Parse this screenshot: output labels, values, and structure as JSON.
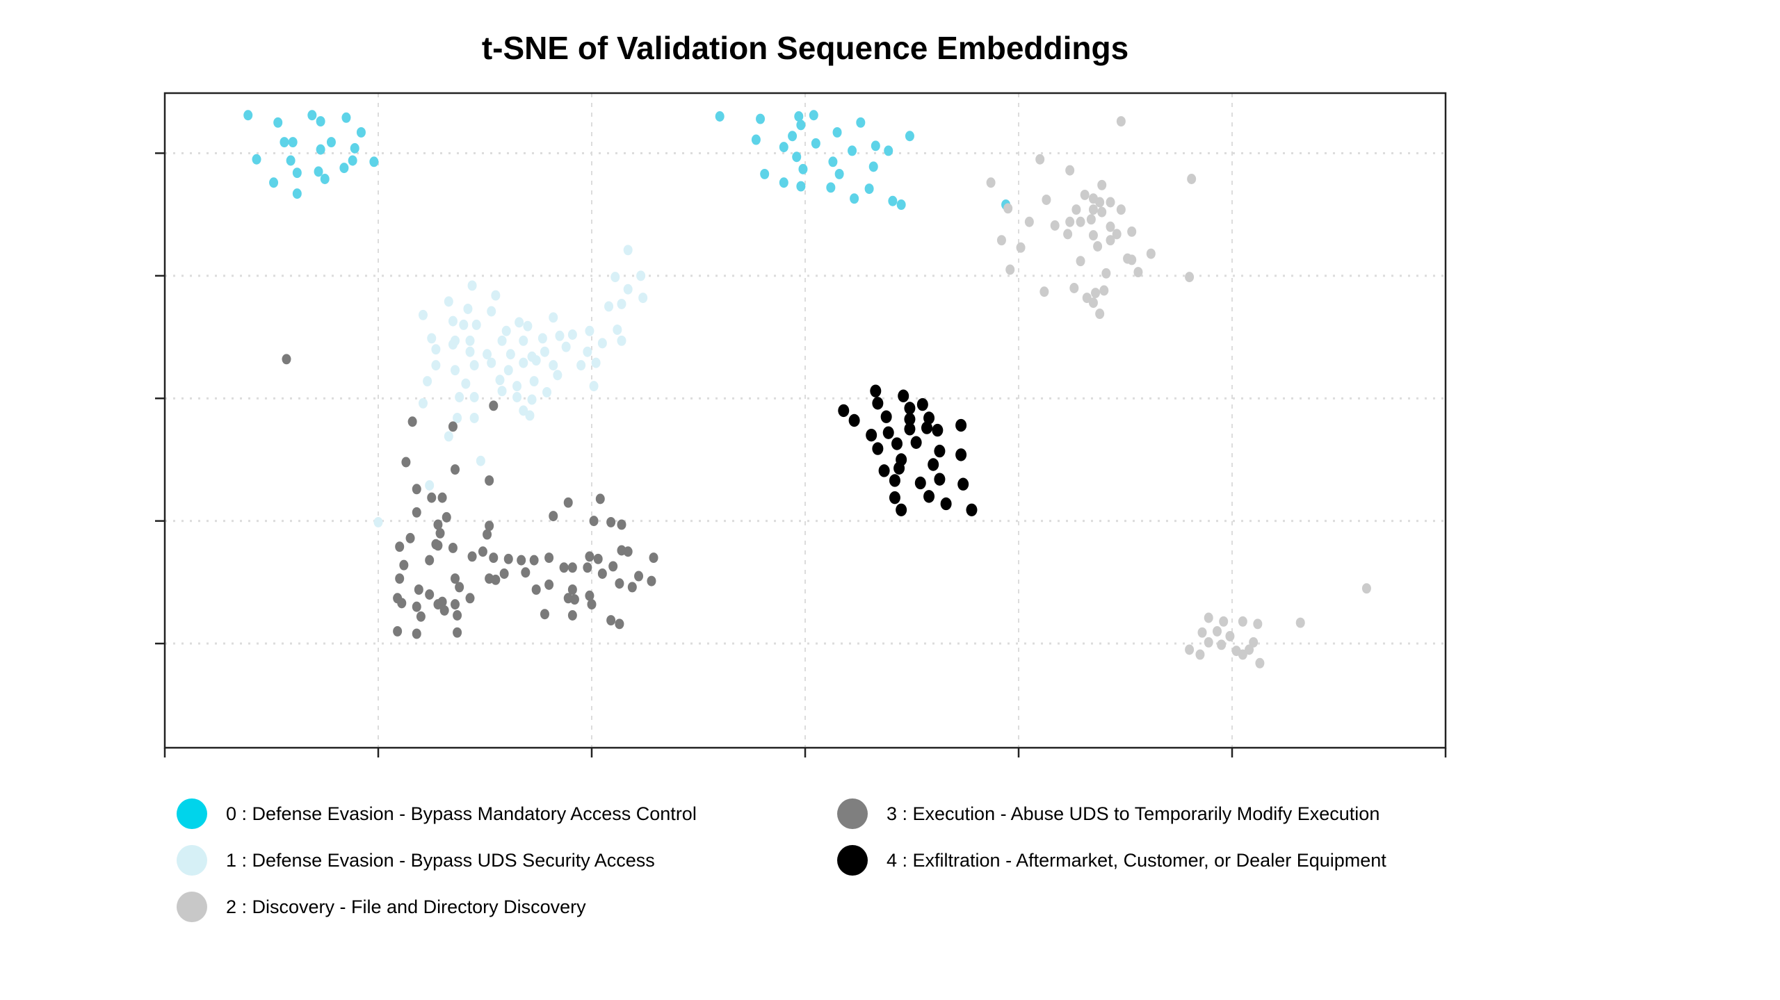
{
  "chart_data": {
    "type": "scatter",
    "title": "t-SNE of Validation Sequence Embeddings",
    "xlabel": "",
    "ylabel": "",
    "xlim": [
      0,
      6
    ],
    "ylim": [
      -0.85,
      4.49
    ],
    "xticks": [
      0,
      1,
      2,
      3,
      4,
      5,
      6
    ],
    "yticks": [
      0,
      1,
      2,
      3,
      4
    ],
    "tick_labels_shown": false,
    "grid": true,
    "legend_placement": "bottom",
    "series": [
      {
        "name": "0 : Defense Evasion - Bypass Mandatory Access Control",
        "color": "#00d4eb",
        "point_color": "#5dd3e8",
        "points": [
          [
            0.39,
            4.31
          ],
          [
            0.53,
            4.25
          ],
          [
            0.69,
            4.31
          ],
          [
            0.73,
            4.26
          ],
          [
            0.85,
            4.29
          ],
          [
            0.56,
            4.09
          ],
          [
            0.6,
            4.09
          ],
          [
            0.78,
            4.09
          ],
          [
            0.92,
            4.17
          ],
          [
            0.73,
            4.03
          ],
          [
            0.89,
            4.04
          ],
          [
            0.43,
            3.95
          ],
          [
            0.59,
            3.94
          ],
          [
            0.72,
            3.85
          ],
          [
            0.84,
            3.88
          ],
          [
            0.88,
            3.94
          ],
          [
            0.98,
            3.93
          ],
          [
            0.51,
            3.76
          ],
          [
            0.62,
            3.84
          ],
          [
            0.75,
            3.79
          ],
          [
            0.62,
            3.67
          ],
          [
            2.6,
            4.3
          ],
          [
            2.79,
            4.28
          ],
          [
            2.97,
            4.3
          ],
          [
            3.04,
            4.31
          ],
          [
            2.98,
            4.23
          ],
          [
            3.26,
            4.25
          ],
          [
            3.49,
            4.14
          ],
          [
            2.77,
            4.11
          ],
          [
            2.94,
            4.14
          ],
          [
            3.15,
            4.17
          ],
          [
            2.9,
            4.05
          ],
          [
            3.05,
            4.08
          ],
          [
            3.33,
            4.06
          ],
          [
            3.39,
            4.02
          ],
          [
            2.96,
            3.97
          ],
          [
            3.22,
            4.02
          ],
          [
            3.13,
            3.93
          ],
          [
            2.81,
            3.83
          ],
          [
            2.99,
            3.87
          ],
          [
            3.16,
            3.83
          ],
          [
            3.32,
            3.89
          ],
          [
            2.9,
            3.76
          ],
          [
            2.98,
            3.73
          ],
          [
            3.12,
            3.72
          ],
          [
            3.3,
            3.71
          ],
          [
            3.23,
            3.63
          ],
          [
            3.41,
            3.61
          ],
          [
            3.45,
            3.58
          ],
          [
            3.94,
            3.58
          ]
        ]
      },
      {
        "name": "1 : Defense Evasion - Bypass UDS Security Access",
        "color": "#d6f0f6",
        "point_color": "#d8f0f7",
        "points": [
          [
            2.17,
            3.21
          ],
          [
            2.11,
            2.99
          ],
          [
            2.23,
            3.0
          ],
          [
            2.17,
            2.89
          ],
          [
            2.24,
            2.82
          ],
          [
            2.14,
            2.77
          ],
          [
            2.08,
            2.75
          ],
          [
            1.44,
            2.92
          ],
          [
            1.55,
            2.84
          ],
          [
            1.33,
            2.79
          ],
          [
            1.42,
            2.73
          ],
          [
            1.53,
            2.71
          ],
          [
            1.21,
            2.68
          ],
          [
            1.35,
            2.63
          ],
          [
            1.4,
            2.6
          ],
          [
            1.46,
            2.6
          ],
          [
            1.82,
            2.66
          ],
          [
            1.66,
            2.62
          ],
          [
            1.7,
            2.59
          ],
          [
            1.6,
            2.55
          ],
          [
            1.25,
            2.49
          ],
          [
            1.36,
            2.47
          ],
          [
            1.43,
            2.47
          ],
          [
            1.58,
            2.47
          ],
          [
            1.68,
            2.47
          ],
          [
            1.77,
            2.49
          ],
          [
            1.85,
            2.51
          ],
          [
            1.91,
            2.52
          ],
          [
            1.99,
            2.55
          ],
          [
            2.12,
            2.56
          ],
          [
            1.27,
            2.4
          ],
          [
            1.35,
            2.44
          ],
          [
            1.43,
            2.38
          ],
          [
            1.51,
            2.36
          ],
          [
            1.62,
            2.36
          ],
          [
            1.72,
            2.34
          ],
          [
            1.78,
            2.38
          ],
          [
            1.88,
            2.42
          ],
          [
            1.98,
            2.38
          ],
          [
            2.05,
            2.45
          ],
          [
            2.14,
            2.47
          ],
          [
            1.27,
            2.27
          ],
          [
            1.36,
            2.23
          ],
          [
            1.45,
            2.27
          ],
          [
            1.53,
            2.29
          ],
          [
            1.61,
            2.23
          ],
          [
            1.68,
            2.29
          ],
          [
            1.74,
            2.31
          ],
          [
            1.82,
            2.27
          ],
          [
            1.95,
            2.27
          ],
          [
            2.02,
            2.29
          ],
          [
            1.41,
            2.12
          ],
          [
            1.57,
            2.15
          ],
          [
            1.65,
            2.1
          ],
          [
            1.73,
            2.14
          ],
          [
            1.84,
            2.19
          ],
          [
            2.01,
            2.1
          ],
          [
            1.23,
            2.14
          ],
          [
            1.21,
            1.96
          ],
          [
            1.38,
            2.01
          ],
          [
            1.45,
            2.01
          ],
          [
            1.58,
            2.06
          ],
          [
            1.65,
            2.01
          ],
          [
            1.72,
            1.99
          ],
          [
            1.79,
            2.05
          ],
          [
            1.37,
            1.84
          ],
          [
            1.45,
            1.84
          ],
          [
            1.68,
            1.9
          ],
          [
            1.71,
            1.86
          ],
          [
            1.33,
            1.69
          ],
          [
            1.48,
            1.49
          ],
          [
            1.24,
            1.29
          ],
          [
            1.0,
            0.99
          ]
        ]
      },
      {
        "name": "2 : Discovery - File and Directory Discovery",
        "color": "#c8c8c8",
        "point_color": "#cbcbcb",
        "points": [
          [
            4.48,
            4.26
          ],
          [
            4.1,
            3.95
          ],
          [
            3.87,
            3.76
          ],
          [
            4.81,
            3.79
          ],
          [
            4.24,
            3.86
          ],
          [
            4.39,
            3.74
          ],
          [
            4.31,
            3.66
          ],
          [
            4.35,
            3.63
          ],
          [
            4.38,
            3.6
          ],
          [
            4.43,
            3.6
          ],
          [
            4.27,
            3.54
          ],
          [
            4.35,
            3.54
          ],
          [
            4.48,
            3.54
          ],
          [
            3.95,
            3.55
          ],
          [
            4.13,
            3.62
          ],
          [
            4.29,
            3.44
          ],
          [
            4.39,
            3.52
          ],
          [
            4.17,
            3.41
          ],
          [
            4.24,
            3.44
          ],
          [
            4.34,
            3.46
          ],
          [
            4.43,
            3.4
          ],
          [
            4.46,
            3.34
          ],
          [
            4.53,
            3.36
          ],
          [
            3.92,
            3.29
          ],
          [
            4.05,
            3.44
          ],
          [
            4.23,
            3.34
          ],
          [
            4.35,
            3.33
          ],
          [
            4.01,
            3.23
          ],
          [
            4.37,
            3.24
          ],
          [
            4.43,
            3.29
          ],
          [
            4.62,
            3.18
          ],
          [
            3.96,
            3.05
          ],
          [
            4.51,
            3.14
          ],
          [
            4.53,
            3.13
          ],
          [
            4.29,
            3.12
          ],
          [
            4.8,
            2.99
          ],
          [
            4.41,
            3.02
          ],
          [
            4.56,
            3.03
          ],
          [
            4.12,
            2.87
          ],
          [
            4.26,
            2.9
          ],
          [
            4.32,
            2.82
          ],
          [
            4.36,
            2.86
          ],
          [
            4.4,
            2.88
          ],
          [
            4.35,
            2.78
          ],
          [
            4.38,
            2.69
          ],
          [
            5.63,
            0.45
          ],
          [
            5.32,
            0.17
          ],
          [
            4.89,
            0.21
          ],
          [
            4.96,
            0.18
          ],
          [
            5.05,
            0.18
          ],
          [
            5.12,
            0.16
          ],
          [
            4.86,
            0.09
          ],
          [
            4.93,
            0.1
          ],
          [
            4.99,
            0.06
          ],
          [
            4.8,
            -0.05
          ],
          [
            4.85,
            -0.09
          ],
          [
            4.89,
            0.01
          ],
          [
            4.95,
            -0.01
          ],
          [
            5.02,
            -0.06
          ],
          [
            5.05,
            -0.09
          ],
          [
            5.1,
            0.01
          ],
          [
            5.13,
            -0.16
          ],
          [
            5.08,
            -0.05
          ]
        ]
      },
      {
        "name": "3 : Execution - Abuse UDS to Temporarily Modify Execution",
        "color": "#7f7f7f",
        "point_color": "#7a7a7a",
        "points": [
          [
            0.57,
            2.32
          ],
          [
            1.16,
            1.81
          ],
          [
            1.35,
            1.77
          ],
          [
            1.54,
            1.94
          ],
          [
            1.13,
            1.48
          ],
          [
            1.36,
            1.42
          ],
          [
            1.18,
            1.26
          ],
          [
            1.25,
            1.19
          ],
          [
            1.3,
            1.19
          ],
          [
            1.52,
            1.33
          ],
          [
            1.18,
            1.07
          ],
          [
            1.32,
            1.03
          ],
          [
            1.52,
            0.96
          ],
          [
            1.15,
            0.86
          ],
          [
            1.28,
            0.97
          ],
          [
            1.29,
            0.9
          ],
          [
            1.28,
            0.8
          ],
          [
            1.27,
            0.81
          ],
          [
            1.51,
            0.89
          ],
          [
            1.82,
            1.04
          ],
          [
            1.89,
            1.15
          ],
          [
            2.04,
            1.18
          ],
          [
            2.01,
            1.0
          ],
          [
            2.09,
            0.99
          ],
          [
            2.14,
            0.97
          ],
          [
            2.14,
            0.76
          ],
          [
            2.17,
            0.75
          ],
          [
            2.29,
            0.7
          ],
          [
            1.1,
            0.79
          ],
          [
            1.1,
            0.53
          ],
          [
            1.12,
            0.64
          ],
          [
            1.24,
            0.68
          ],
          [
            1.35,
            0.78
          ],
          [
            1.44,
            0.71
          ],
          [
            1.49,
            0.75
          ],
          [
            1.54,
            0.7
          ],
          [
            1.61,
            0.69
          ],
          [
            1.67,
            0.68
          ],
          [
            1.73,
            0.68
          ],
          [
            1.8,
            0.7
          ],
          [
            1.87,
            0.62
          ],
          [
            1.91,
            0.62
          ],
          [
            1.99,
            0.71
          ],
          [
            2.03,
            0.69
          ],
          [
            2.05,
            0.57
          ],
          [
            2.1,
            0.63
          ],
          [
            2.13,
            0.49
          ],
          [
            2.19,
            0.46
          ],
          [
            2.22,
            0.55
          ],
          [
            2.28,
            0.51
          ],
          [
            1.09,
            0.37
          ],
          [
            1.19,
            0.44
          ],
          [
            1.24,
            0.4
          ],
          [
            1.28,
            0.32
          ],
          [
            1.36,
            0.53
          ],
          [
            1.38,
            0.46
          ],
          [
            1.52,
            0.53
          ],
          [
            1.55,
            0.52
          ],
          [
            1.59,
            0.57
          ],
          [
            1.69,
            0.58
          ],
          [
            1.74,
            0.44
          ],
          [
            1.8,
            0.48
          ],
          [
            1.91,
            0.44
          ],
          [
            1.92,
            0.36
          ],
          [
            2.0,
            0.32
          ],
          [
            1.98,
            0.62
          ],
          [
            1.11,
            0.33
          ],
          [
            1.18,
            0.3
          ],
          [
            1.2,
            0.22
          ],
          [
            1.3,
            0.34
          ],
          [
            1.31,
            0.27
          ],
          [
            1.36,
            0.32
          ],
          [
            1.37,
            0.23
          ],
          [
            1.43,
            0.37
          ],
          [
            1.78,
            0.24
          ],
          [
            1.91,
            0.23
          ],
          [
            2.09,
            0.19
          ],
          [
            2.13,
            0.16
          ],
          [
            1.09,
            0.1
          ],
          [
            1.18,
            0.08
          ],
          [
            1.37,
            0.09
          ],
          [
            1.89,
            0.37
          ],
          [
            1.99,
            0.39
          ]
        ]
      },
      {
        "name": "4 : Exfiltration - Aftermarket, Customer, or Dealer Equipment",
        "color": "#000000",
        "point_color": "#000000",
        "points": [
          [
            3.33,
            2.06
          ],
          [
            3.46,
            2.02
          ],
          [
            3.34,
            1.96
          ],
          [
            3.55,
            1.95
          ],
          [
            3.18,
            1.9
          ],
          [
            3.23,
            1.82
          ],
          [
            3.38,
            1.85
          ],
          [
            3.49,
            1.92
          ],
          [
            3.49,
            1.83
          ],
          [
            3.58,
            1.84
          ],
          [
            3.73,
            1.78
          ],
          [
            3.31,
            1.7
          ],
          [
            3.39,
            1.72
          ],
          [
            3.49,
            1.75
          ],
          [
            3.62,
            1.74
          ],
          [
            3.43,
            1.63
          ],
          [
            3.34,
            1.59
          ],
          [
            3.52,
            1.64
          ],
          [
            3.63,
            1.57
          ],
          [
            3.73,
            1.54
          ],
          [
            3.45,
            1.5
          ],
          [
            3.37,
            1.41
          ],
          [
            3.44,
            1.43
          ],
          [
            3.6,
            1.46
          ],
          [
            3.42,
            1.33
          ],
          [
            3.54,
            1.31
          ],
          [
            3.63,
            1.34
          ],
          [
            3.74,
            1.3
          ],
          [
            3.42,
            1.19
          ],
          [
            3.58,
            1.2
          ],
          [
            3.66,
            1.14
          ],
          [
            3.78,
            1.09
          ],
          [
            3.45,
            1.09
          ],
          [
            3.57,
            1.76
          ]
        ]
      }
    ]
  }
}
